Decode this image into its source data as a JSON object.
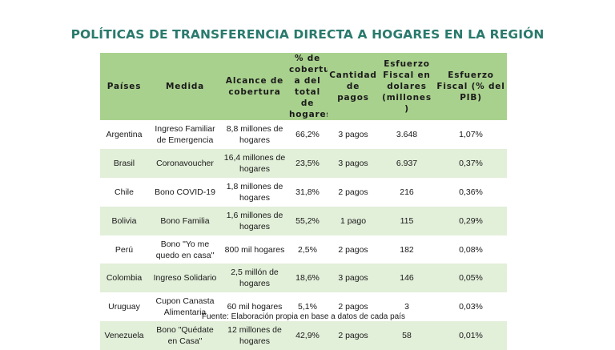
{
  "title": "POLÍTICAS DE TRANSFERENCIA DIRECTA A HOGARES EN LA REGIÓN",
  "table": {
    "headers": [
      "Países",
      "Medida",
      "Alcance de\ncobertura",
      "% de\ncobertur\na del\ntotal de\nhogares",
      "Cantidad\nde\npagos",
      "Esfuerzo\nFiscal en\ndolares\n(millones\n)",
      "Esfuerzo\nFiscal (% del\nPIB)"
    ],
    "rows": [
      [
        "Argentina",
        "Ingreso Familiar\nde Emergencia",
        "8,8 millones de\nhogares",
        "66,2%",
        "3 pagos",
        "3.648",
        "1,07%"
      ],
      [
        "Brasil",
        "Coronavoucher",
        "16,4 millones de\nhogares",
        "23,5%",
        "3 pagos",
        "6.937",
        "0,37%"
      ],
      [
        "Chile",
        "Bono COVID-19",
        "1,8 millones de\nhogares",
        "31,8%",
        "2 pagos",
        "216",
        "0,36%"
      ],
      [
        "Bolivia",
        "Bono Familia",
        "1,6 millones de\nhogares",
        "55,2%",
        "1 pago",
        "115",
        "0,29%"
      ],
      [
        "Perú",
        "Bono \"Yo me\nquedo en casa\"",
        "800 mil hogares",
        "2,5%",
        "2 pagos",
        "182",
        "0,08%"
      ],
      [
        "Colombia",
        "Ingreso Solidario",
        "2,5 millón de\nhogares",
        "18,6%",
        "3 pagos",
        "146",
        "0,05%"
      ],
      [
        "Uruguay",
        "Cupon Canasta\nAlimentaria",
        "60 mil hogares",
        "5,1%",
        "2 pagos",
        "3",
        "0,03%"
      ],
      [
        "Venezuela",
        "Bono \"Quédate\nen Casa\"",
        "12 millones de\nhogares",
        "42,9%",
        "2 pagos",
        "58",
        "0,01%"
      ]
    ]
  },
  "source": "Fuente: Elaboración propia en base a datos de cada país",
  "colors": {
    "title": "#2a7a6d",
    "header_bg": "#a9d18e",
    "row_shade": "#e2efd9"
  }
}
